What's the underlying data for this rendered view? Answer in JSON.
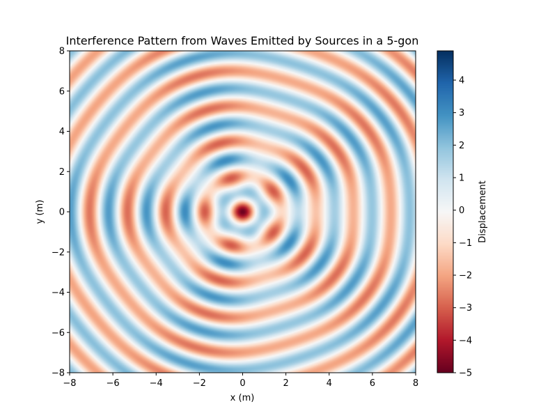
{
  "chart_data": {
    "type": "heatmap",
    "title": "Interference Pattern from Waves Emitted by Sources in a 5-gon",
    "xlabel": "x (m)",
    "ylabel": "y (m)",
    "xlim": [
      -8,
      8
    ],
    "ylim": [
      -8,
      8
    ],
    "xticks": [
      -8,
      -6,
      -4,
      -2,
      0,
      2,
      4,
      6,
      8
    ],
    "yticks": [
      -8,
      -6,
      -4,
      -2,
      0,
      2,
      4,
      6,
      8
    ],
    "colormap": "RdBu",
    "colorbar": {
      "label": "Displacement",
      "min": -5,
      "max": 4.9,
      "ticks": [
        -5,
        -4,
        -3,
        -2,
        -1,
        0,
        1,
        2,
        3,
        4
      ]
    },
    "sources": {
      "count": 5,
      "polygon": "5-gon",
      "amplitude": 1,
      "wavenumber": 3.6
    },
    "grid": false
  },
  "colors": {
    "low": "#67001f",
    "mid": "#f7f7f7",
    "high": "#053061"
  }
}
